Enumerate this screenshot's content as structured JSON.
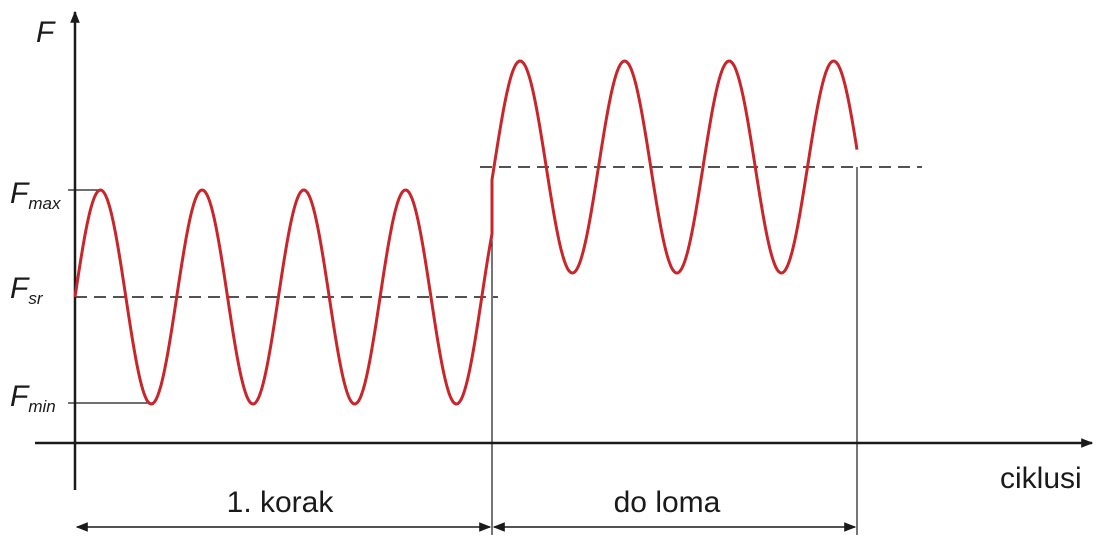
{
  "axes": {
    "y_label": "F",
    "x_label": "ciklusi"
  },
  "levels": [
    {
      "symbol": "F",
      "subscript": "max"
    },
    {
      "symbol": "F",
      "subscript": "sr"
    },
    {
      "symbol": "F",
      "subscript": "min"
    }
  ],
  "intervals": [
    "1. korak",
    "do loma"
  ]
}
